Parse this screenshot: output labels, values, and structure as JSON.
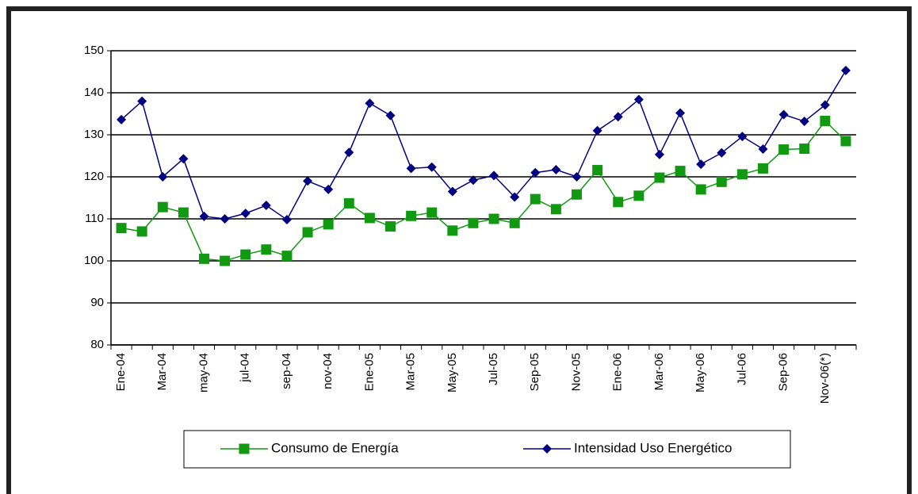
{
  "chart_data": {
    "type": "line",
    "categories": [
      "Ene-04",
      null,
      "Mar-04",
      null,
      "may-04",
      null,
      "jul-04",
      null,
      "sep-04",
      null,
      "nov-04",
      null,
      "Ene-05",
      null,
      "Mar-05",
      null,
      "May-05",
      null,
      "Jul-05",
      null,
      "Sep-05",
      null,
      "Nov-05",
      null,
      "Ene-06",
      null,
      "Mar-06",
      null,
      "May-06",
      null,
      "Jul-06",
      null,
      "Sep-06",
      null,
      "Nov-06(*)",
      null
    ],
    "series": [
      {
        "name": "Consumo de Energía",
        "color": "#119911",
        "marker": "square",
        "values": [
          107.8,
          107,
          112.8,
          111.5,
          100.5,
          100,
          101.5,
          102.7,
          101.2,
          106.8,
          108.7,
          113.7,
          110.2,
          108.2,
          110.7,
          111.5,
          107.2,
          109,
          110,
          109,
          114.7,
          112.3,
          115.8,
          121.6,
          114,
          115.5,
          119.8,
          121.4,
          117,
          118.8,
          120.6,
          122,
          126.5,
          126.7,
          133.3,
          128.5
        ]
      },
      {
        "name": "Intensidad Uso Energético",
        "color": "#000080",
        "marker": "diamond",
        "values": [
          133.6,
          138,
          120,
          124.3,
          110.6,
          110,
          111.3,
          113.2,
          109.8,
          119,
          117,
          125.8,
          137.5,
          134.6,
          122,
          122.3,
          116.5,
          119.2,
          120.3,
          115.2,
          121,
          121.7,
          120,
          131,
          134.3,
          138.4,
          125.3,
          135.2,
          123,
          125.7,
          129.6,
          126.6,
          134.8,
          133.2,
          137.1,
          145.3
        ]
      }
    ],
    "ylim": [
      80,
      150
    ],
    "yticks": [
      80,
      90,
      100,
      110,
      120,
      130,
      140,
      150
    ],
    "grid": true,
    "legend": "bottom"
  }
}
